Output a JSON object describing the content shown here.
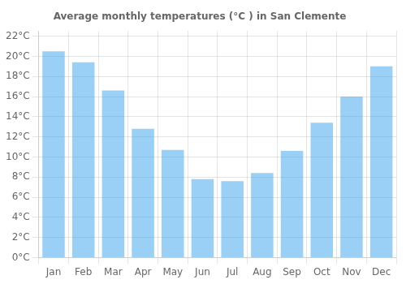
{
  "chart_data": {
    "type": "bar",
    "title": "Average monthly temperatures (°C ) in San Clemente",
    "categories": [
      "Jan",
      "Feb",
      "Mar",
      "Apr",
      "May",
      "Jun",
      "Jul",
      "Aug",
      "Sep",
      "Oct",
      "Nov",
      "Dec"
    ],
    "values": [
      20.5,
      19.4,
      16.6,
      12.8,
      10.7,
      7.8,
      7.6,
      8.4,
      10.6,
      13.4,
      16.0,
      19.0
    ],
    "ylim": [
      0,
      22.5
    ],
    "yticks": [
      {
        "value": 0,
        "label": "0°C"
      },
      {
        "value": 2,
        "label": "2°C"
      },
      {
        "value": 4,
        "label": "4°C"
      },
      {
        "value": 6,
        "label": "6°C"
      },
      {
        "value": 8,
        "label": "8°C"
      },
      {
        "value": 10,
        "label": "10°C"
      },
      {
        "value": 12,
        "label": "12°C"
      },
      {
        "value": 14,
        "label": "14°C"
      },
      {
        "value": 16,
        "label": "16°C"
      },
      {
        "value": 18,
        "label": "18°C"
      },
      {
        "value": 20,
        "label": "20°C"
      },
      {
        "value": 22,
        "label": "22°C"
      }
    ],
    "grid": true
  }
}
